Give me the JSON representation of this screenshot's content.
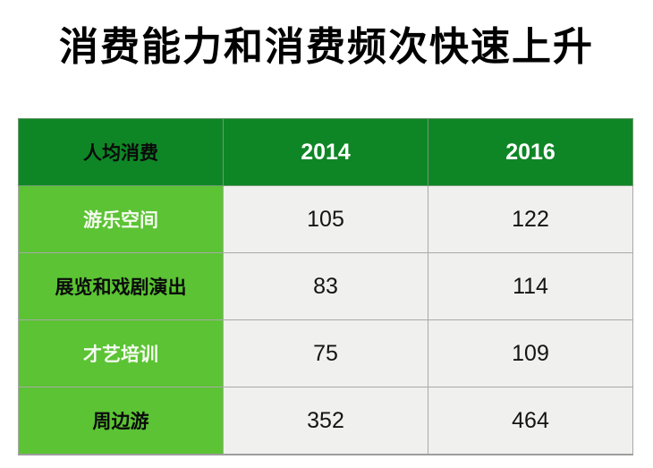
{
  "title": "消费能力和消费频次快速上升",
  "colors": {
    "header_green": "#0E8626",
    "row_green": "#5BC334",
    "value_cell_gray": "#F0F0EE",
    "border_gray": "#A9A9A9",
    "year_text": "#FFFFFF",
    "header_label_text": "#0B0B0B"
  },
  "chart_data": {
    "type": "table",
    "title": "消费能力和消费频次快速上升",
    "columns": [
      "人均消费",
      "2014",
      "2016"
    ],
    "rows": [
      {
        "label": "游乐空间",
        "values": [
          105,
          122
        ]
      },
      {
        "label": "展览和戏剧演出",
        "values": [
          83,
          114
        ]
      },
      {
        "label": "才艺培训",
        "values": [
          75,
          109
        ]
      },
      {
        "label": "周边游",
        "values": [
          352,
          464
        ]
      }
    ]
  }
}
